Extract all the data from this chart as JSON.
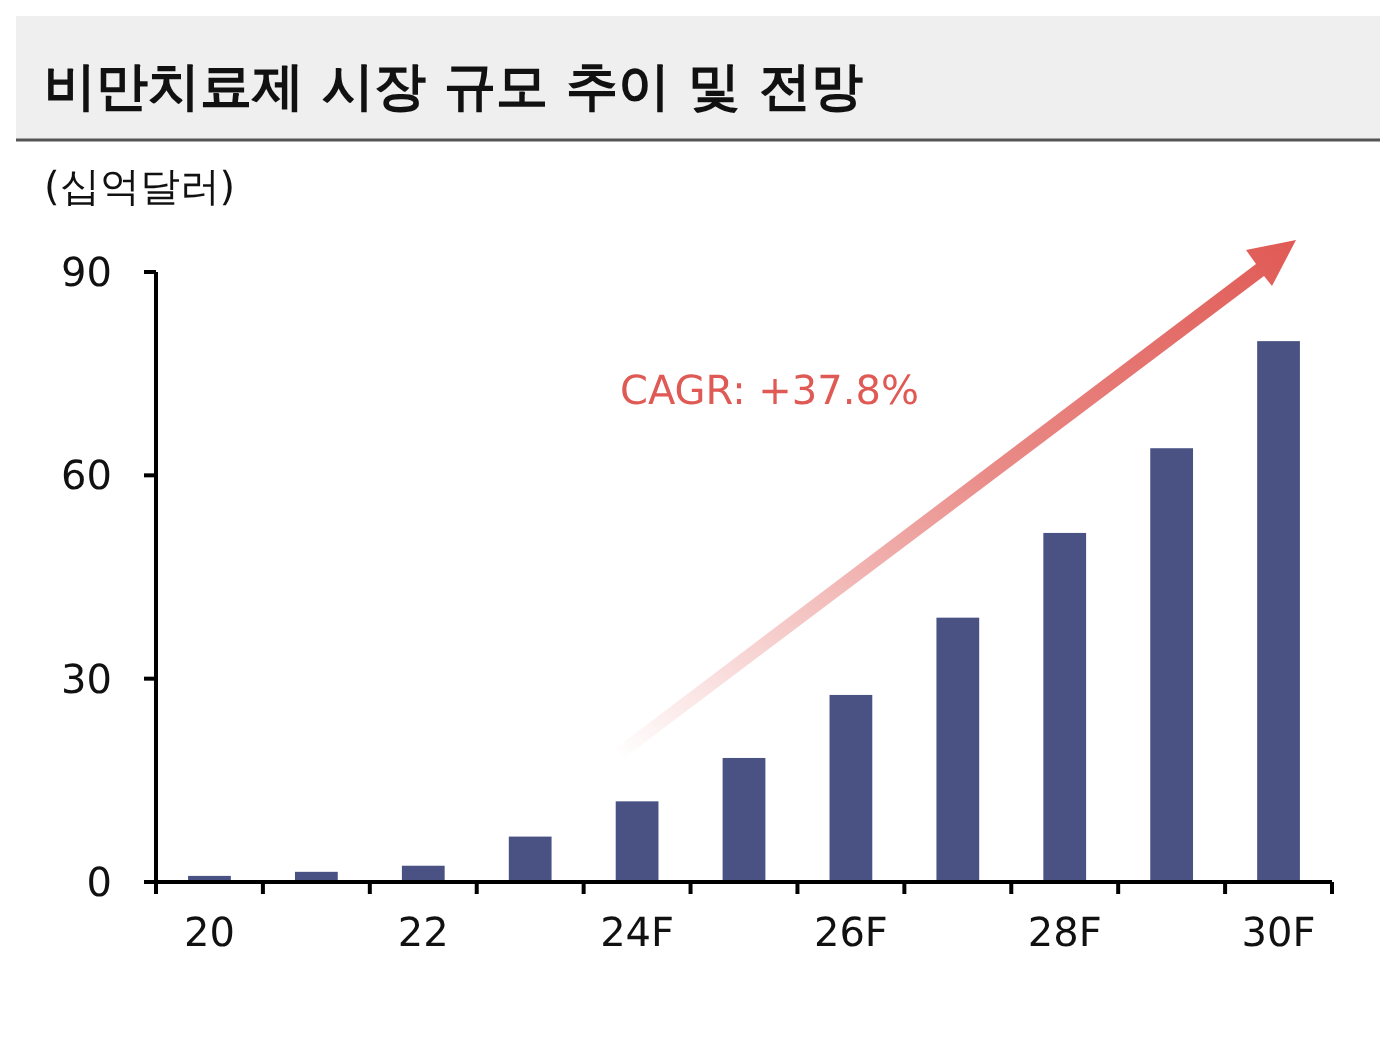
{
  "chart_data": {
    "type": "bar",
    "title": "비만치료제 시장 규모 추이 및 전망",
    "ylabel": "(십억달러)",
    "categories": [
      "20",
      null,
      "22",
      null,
      "24F",
      null,
      "26F",
      null,
      "28F",
      null,
      "30F"
    ],
    "values": [
      0.9,
      1.5,
      2.4,
      6.7,
      11.9,
      18.3,
      27.6,
      39.0,
      51.5,
      64.0,
      79.8
    ],
    "color": "#4a5283",
    "ylim": [
      0,
      90
    ],
    "yticks": [
      0,
      30,
      60,
      90
    ],
    "grid": false,
    "annotations": [
      "CAGR: +37.8%"
    ]
  }
}
